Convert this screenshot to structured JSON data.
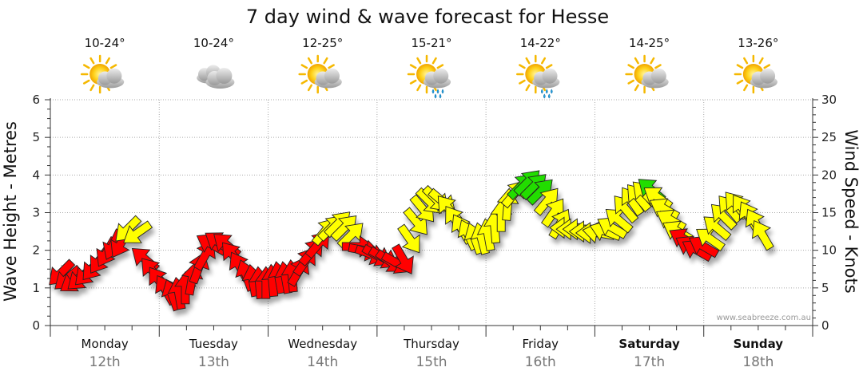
{
  "chart_data": {
    "type": "line",
    "title": "7 day wind & wave forecast for Hesse",
    "y_left": {
      "label": "Wave Height - Metres",
      "range": [
        0,
        6
      ],
      "ticks": [
        0,
        1,
        2,
        3,
        4,
        5,
        6
      ]
    },
    "y_right": {
      "label": "Wind Speed - Knots",
      "range": [
        0,
        30
      ],
      "ticks": [
        0,
        5,
        10,
        15,
        20,
        25,
        30
      ]
    },
    "credit": "www.seabreeze.com.au",
    "grid": true,
    "days": [
      {
        "name": "Monday",
        "date": "12th",
        "temp": "10-24°",
        "icon": "sun-cloud-icon",
        "bold": false
      },
      {
        "name": "Tuesday",
        "date": "13th",
        "temp": "10-24°",
        "icon": "cloud-icon",
        "bold": false
      },
      {
        "name": "Wednesday",
        "date": "14th",
        "temp": "12-25°",
        "icon": "sun-cloud-icon",
        "bold": false
      },
      {
        "name": "Thursday",
        "date": "15th",
        "temp": "15-21°",
        "icon": "sun-cloud-rain-icon",
        "bold": false
      },
      {
        "name": "Friday",
        "date": "16th",
        "temp": "14-22°",
        "icon": "sun-cloud-rain-icon",
        "bold": false
      },
      {
        "name": "Saturday",
        "date": "17th",
        "temp": "14-25°",
        "icon": "sun-cloud-icon",
        "bold": true
      },
      {
        "name": "Sunday",
        "date": "18th",
        "temp": "13-26°",
        "icon": "sun-cloud-icon",
        "bold": true
      }
    ],
    "wind_colors": {
      "red": "#ff0000",
      "yellow": "#ffff00",
      "green": "#22dd00"
    },
    "wind_series": {
      "name": "Wind Speed",
      "unit": "knots",
      "points": [
        {
          "t": 0.1,
          "speed": 7.0,
          "dir": 225,
          "color": "red"
        },
        {
          "t": 0.16,
          "speed": 6.3,
          "dir": 230,
          "color": "red"
        },
        {
          "t": 0.22,
          "speed": 5.9,
          "dir": 235,
          "color": "red"
        },
        {
          "t": 0.28,
          "speed": 6.3,
          "dir": 230,
          "color": "red"
        },
        {
          "t": 0.34,
          "speed": 7.0,
          "dir": 225,
          "color": "red"
        },
        {
          "t": 0.4,
          "speed": 7.8,
          "dir": 220,
          "color": "red"
        },
        {
          "t": 0.46,
          "speed": 8.8,
          "dir": 215,
          "color": "red"
        },
        {
          "t": 0.52,
          "speed": 9.8,
          "dir": 210,
          "color": "red"
        },
        {
          "t": 0.58,
          "speed": 10.8,
          "dir": 205,
          "color": "red"
        },
        {
          "t": 0.65,
          "speed": 11.0,
          "dir": 210,
          "color": "red"
        },
        {
          "t": 0.71,
          "speed": 12.8,
          "dir": 225,
          "color": "yellow"
        },
        {
          "t": 0.8,
          "speed": 12.3,
          "dir": 235,
          "color": "yellow"
        },
        {
          "t": 0.87,
          "speed": 8.8,
          "dir": 310,
          "color": "red"
        },
        {
          "t": 0.94,
          "speed": 7.2,
          "dir": 320,
          "color": "red"
        },
        {
          "t": 1.0,
          "speed": 5.9,
          "dir": 325,
          "color": "red"
        },
        {
          "t": 1.06,
          "speed": 4.7,
          "dir": 330,
          "color": "red"
        },
        {
          "t": 1.12,
          "speed": 4.0,
          "dir": 340,
          "color": "red"
        },
        {
          "t": 1.18,
          "speed": 4.2,
          "dir": 350,
          "color": "red"
        },
        {
          "t": 1.24,
          "speed": 4.9,
          "dir": 360,
          "color": "red"
        },
        {
          "t": 1.3,
          "speed": 6.1,
          "dir": 10,
          "color": "red"
        },
        {
          "t": 1.36,
          "speed": 7.6,
          "dir": 20,
          "color": "red"
        },
        {
          "t": 1.42,
          "speed": 9.3,
          "dir": 30,
          "color": "red"
        },
        {
          "t": 1.48,
          "speed": 10.8,
          "dir": 300,
          "color": "red"
        },
        {
          "t": 1.55,
          "speed": 11.0,
          "dir": 305,
          "color": "red"
        },
        {
          "t": 1.62,
          "speed": 10.7,
          "dir": 310,
          "color": "red"
        },
        {
          "t": 1.68,
          "speed": 9.3,
          "dir": 320,
          "color": "red"
        },
        {
          "t": 1.74,
          "speed": 7.8,
          "dir": 330,
          "color": "red"
        },
        {
          "t": 1.8,
          "speed": 6.6,
          "dir": 340,
          "color": "red"
        },
        {
          "t": 1.86,
          "speed": 5.9,
          "dir": 350,
          "color": "red"
        },
        {
          "t": 1.92,
          "speed": 5.6,
          "dir": 355,
          "color": "red"
        },
        {
          "t": 1.98,
          "speed": 5.6,
          "dir": 360,
          "color": "red"
        },
        {
          "t": 2.04,
          "speed": 5.9,
          "dir": 355,
          "color": "red"
        },
        {
          "t": 2.1,
          "speed": 6.3,
          "dir": 350,
          "color": "red"
        },
        {
          "t": 2.16,
          "speed": 6.3,
          "dir": 350,
          "color": "red"
        },
        {
          "t": 2.22,
          "speed": 6.5,
          "dir": 355,
          "color": "red"
        },
        {
          "t": 2.28,
          "speed": 7.2,
          "dir": 30,
          "color": "red"
        },
        {
          "t": 2.34,
          "speed": 8.5,
          "dir": 35,
          "color": "red"
        },
        {
          "t": 2.4,
          "speed": 9.8,
          "dir": 40,
          "color": "red"
        },
        {
          "t": 2.46,
          "speed": 10.8,
          "dir": 40,
          "color": "red"
        },
        {
          "t": 2.52,
          "speed": 12.5,
          "dir": 40,
          "color": "yellow"
        },
        {
          "t": 2.58,
          "speed": 13.0,
          "dir": 45,
          "color": "yellow"
        },
        {
          "t": 2.64,
          "speed": 13.5,
          "dir": 45,
          "color": "yellow"
        },
        {
          "t": 2.7,
          "speed": 13.0,
          "dir": 45,
          "color": "yellow"
        },
        {
          "t": 2.76,
          "speed": 12.0,
          "dir": 45,
          "color": "yellow"
        },
        {
          "t": 2.82,
          "speed": 10.5,
          "dir": 90,
          "color": "red"
        },
        {
          "t": 2.88,
          "speed": 10.0,
          "dir": 100,
          "color": "red"
        },
        {
          "t": 2.94,
          "speed": 9.5,
          "dir": 110,
          "color": "red"
        },
        {
          "t": 3.0,
          "speed": 9.3,
          "dir": 120,
          "color": "red"
        },
        {
          "t": 3.06,
          "speed": 9.0,
          "dir": 120,
          "color": "red"
        },
        {
          "t": 3.12,
          "speed": 8.5,
          "dir": 125,
          "color": "red"
        },
        {
          "t": 3.18,
          "speed": 8.3,
          "dir": 120,
          "color": "red"
        },
        {
          "t": 3.24,
          "speed": 8.8,
          "dir": 150,
          "color": "red"
        },
        {
          "t": 3.3,
          "speed": 11.5,
          "dir": 145,
          "color": "yellow"
        },
        {
          "t": 3.36,
          "speed": 13.8,
          "dir": 140,
          "color": "yellow"
        },
        {
          "t": 3.42,
          "speed": 15.5,
          "dir": 140,
          "color": "yellow"
        },
        {
          "t": 3.48,
          "speed": 16.5,
          "dir": 135,
          "color": "yellow"
        },
        {
          "t": 3.54,
          "speed": 16.8,
          "dir": 135,
          "color": "yellow"
        },
        {
          "t": 3.6,
          "speed": 16.5,
          "dir": 130,
          "color": "yellow"
        },
        {
          "t": 3.66,
          "speed": 15.5,
          "dir": 320,
          "color": "yellow"
        },
        {
          "t": 3.72,
          "speed": 14.0,
          "dir": 325,
          "color": "yellow"
        },
        {
          "t": 3.78,
          "speed": 12.8,
          "dir": 330,
          "color": "yellow"
        },
        {
          "t": 3.84,
          "speed": 12.0,
          "dir": 335,
          "color": "yellow"
        },
        {
          "t": 3.9,
          "speed": 11.5,
          "dir": 340,
          "color": "yellow"
        },
        {
          "t": 3.96,
          "speed": 11.5,
          "dir": 345,
          "color": "yellow"
        },
        {
          "t": 4.02,
          "speed": 12.0,
          "dir": 350,
          "color": "yellow"
        },
        {
          "t": 4.08,
          "speed": 13.0,
          "dir": 355,
          "color": "yellow"
        },
        {
          "t": 4.14,
          "speed": 14.5,
          "dir": 360,
          "color": "yellow"
        },
        {
          "t": 4.2,
          "speed": 16.0,
          "dir": 5,
          "color": "yellow"
        },
        {
          "t": 4.26,
          "speed": 17.5,
          "dir": 40,
          "color": "yellow"
        },
        {
          "t": 4.32,
          "speed": 18.5,
          "dir": 45,
          "color": "green"
        },
        {
          "t": 4.38,
          "speed": 19.0,
          "dir": 45,
          "color": "green"
        },
        {
          "t": 4.44,
          "speed": 18.5,
          "dir": 45,
          "color": "green"
        },
        {
          "t": 4.5,
          "speed": 17.8,
          "dir": 45,
          "color": "green"
        },
        {
          "t": 4.56,
          "speed": 16.5,
          "dir": 40,
          "color": "yellow"
        },
        {
          "t": 4.62,
          "speed": 15.0,
          "dir": 35,
          "color": "yellow"
        },
        {
          "t": 4.68,
          "speed": 13.5,
          "dir": 30,
          "color": "yellow"
        },
        {
          "t": 4.74,
          "speed": 13.0,
          "dir": 270,
          "color": "yellow"
        },
        {
          "t": 4.8,
          "speed": 12.8,
          "dir": 270,
          "color": "yellow"
        },
        {
          "t": 4.86,
          "speed": 12.8,
          "dir": 270,
          "color": "yellow"
        },
        {
          "t": 4.92,
          "speed": 12.5,
          "dir": 270,
          "color": "yellow"
        },
        {
          "t": 4.98,
          "speed": 12.3,
          "dir": 270,
          "color": "yellow"
        },
        {
          "t": 5.04,
          "speed": 12.3,
          "dir": 280,
          "color": "yellow"
        },
        {
          "t": 5.1,
          "speed": 12.5,
          "dir": 290,
          "color": "yellow"
        },
        {
          "t": 5.16,
          "speed": 13.0,
          "dir": 300,
          "color": "yellow"
        },
        {
          "t": 5.22,
          "speed": 14.0,
          "dir": 310,
          "color": "yellow"
        },
        {
          "t": 5.28,
          "speed": 15.5,
          "dir": 320,
          "color": "yellow"
        },
        {
          "t": 5.34,
          "speed": 16.5,
          "dir": 325,
          "color": "yellow"
        },
        {
          "t": 5.4,
          "speed": 17.0,
          "dir": 320,
          "color": "yellow"
        },
        {
          "t": 5.46,
          "speed": 17.5,
          "dir": 315,
          "color": "yellow"
        },
        {
          "t": 5.52,
          "speed": 18.0,
          "dir": 310,
          "color": "green"
        },
        {
          "t": 5.58,
          "speed": 17.0,
          "dir": 305,
          "color": "yellow"
        },
        {
          "t": 5.64,
          "speed": 15.5,
          "dir": 300,
          "color": "yellow"
        },
        {
          "t": 5.7,
          "speed": 14.0,
          "dir": 300,
          "color": "yellow"
        },
        {
          "t": 5.76,
          "speed": 12.5,
          "dir": 300,
          "color": "yellow"
        },
        {
          "t": 5.82,
          "speed": 11.5,
          "dir": 300,
          "color": "red"
        },
        {
          "t": 5.88,
          "speed": 10.5,
          "dir": 300,
          "color": "red"
        },
        {
          "t": 5.94,
          "speed": 10.0,
          "dir": 300,
          "color": "red"
        },
        {
          "t": 6.0,
          "speed": 10.5,
          "dir": 300,
          "color": "red"
        },
        {
          "t": 6.06,
          "speed": 11.5,
          "dir": 305,
          "color": "yellow"
        },
        {
          "t": 6.12,
          "speed": 13.0,
          "dir": 310,
          "color": "yellow"
        },
        {
          "t": 6.18,
          "speed": 14.5,
          "dir": 315,
          "color": "yellow"
        },
        {
          "t": 6.24,
          "speed": 15.5,
          "dir": 320,
          "color": "yellow"
        },
        {
          "t": 6.3,
          "speed": 16.0,
          "dir": 320,
          "color": "yellow"
        },
        {
          "t": 6.36,
          "speed": 15.5,
          "dir": 325,
          "color": "yellow"
        },
        {
          "t": 6.42,
          "speed": 14.5,
          "dir": 330,
          "color": "yellow"
        },
        {
          "t": 6.48,
          "speed": 13.5,
          "dir": 330,
          "color": "yellow"
        },
        {
          "t": 6.54,
          "speed": 12.0,
          "dir": 330,
          "color": "yellow"
        }
      ]
    },
    "wave_series": {
      "name": "Wave Height",
      "unit": "metres",
      "points": [
        {
          "t": 0.1,
          "h": 1.6
        },
        {
          "t": 0.3,
          "h": 1.3
        },
        {
          "t": 0.6,
          "h": 2.0
        },
        {
          "t": 0.8,
          "h": 2.5
        }
      ]
    }
  }
}
